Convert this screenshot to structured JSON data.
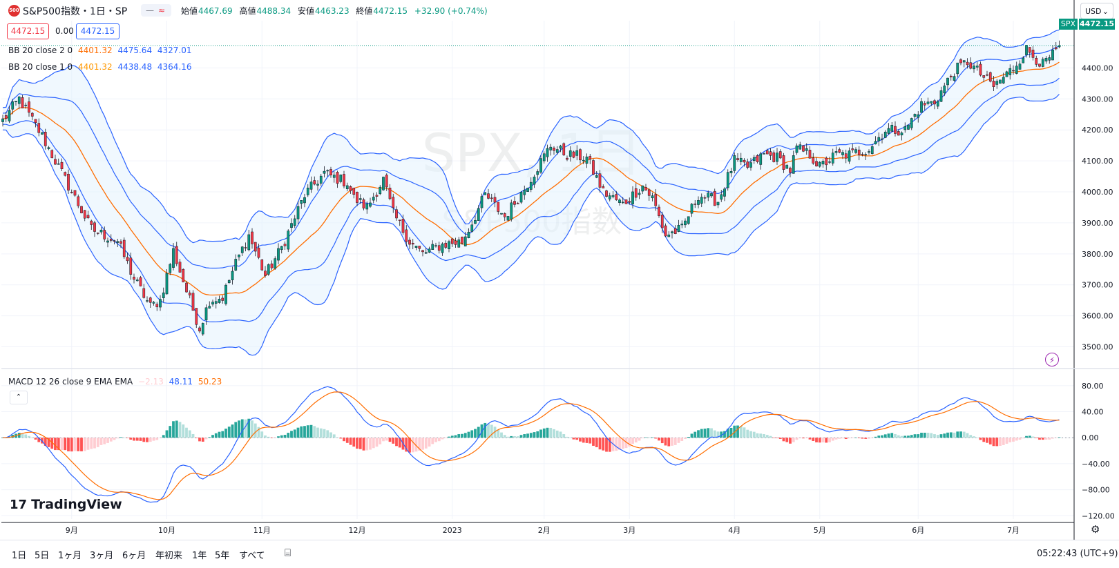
{
  "header": {
    "symbol_icon_text": "500",
    "symbol_title": "S&P500指数・1日・SP",
    "btn_icon_1": "minus-icon",
    "btn_icon_2": "wave-icon",
    "ohlc_labels": [
      "始値",
      "高値",
      "安値",
      "終値"
    ],
    "ohlc_values": [
      "4467.69",
      "4488.34",
      "4463.23",
      "4472.15"
    ],
    "change": "+32.90 (+0.74%)"
  },
  "quote": {
    "bid": "4472.15",
    "spread": "0.00",
    "ask": "4472.15"
  },
  "indicators": {
    "bb2": {
      "label": "BB 20 close 2 0",
      "basis": "4401.32",
      "upper": "4475.64",
      "lower": "4327.01"
    },
    "bb1": {
      "label": "BB 20 close 1 0",
      "basis": "4401.32",
      "upper": "4438.48",
      "lower": "4364.16"
    },
    "macd": {
      "label": "MACD 12 26 close 9 EMA EMA",
      "hist": "−2.13",
      "macd": "48.11",
      "signal": "50.23"
    }
  },
  "watermark": {
    "line1": "SPX, 1日",
    "line2": "S&P500指数"
  },
  "price_scale": {
    "currency": "USD",
    "symbol_tag": "SPX",
    "last_price": "4472.15",
    "ticks": [
      "4400.00",
      "4300.00",
      "4200.00",
      "4100.00",
      "4000.00",
      "3900.00",
      "3800.00",
      "3700.00",
      "3600.00",
      "3500.00"
    ]
  },
  "macd_scale": {
    "ticks": [
      "80.00",
      "40.00",
      "0.00",
      "−40.00",
      "−80.00",
      "−120.00"
    ]
  },
  "time_axis": {
    "labels": [
      "9月",
      "10月",
      "11月",
      "12月",
      "2023",
      "2月",
      "3月",
      "4月",
      "5月",
      "6月",
      "7月"
    ]
  },
  "branding": {
    "logo_icon": "tradingview-logo-icon",
    "logo_text": "TradingView"
  },
  "bottom_bar": {
    "ranges": [
      "1日",
      "5日",
      "1ヶ月",
      "3ヶ月",
      "6ヶ月",
      "年初来",
      "1年",
      "5年",
      "すべて"
    ],
    "calendar_icon": "calendar-range-icon",
    "clock": "05:22:43 (UTC+9)"
  },
  "colors": {
    "up": "#089981",
    "down": "#f23645",
    "bb_line": "#2962ff",
    "bb_fill": "#e3f2fd",
    "basis": "#ff6d00",
    "macd": "#2962ff",
    "signal": "#ff6d00",
    "hist_up_strong": "#26a69a",
    "hist_up_weak": "#b2dfdb",
    "hist_down_strong": "#ff5252",
    "hist_down_weak": "#ffcdd2"
  },
  "chart_data": {
    "type": "candlestick",
    "price_range": [
      3450,
      4530
    ],
    "macd_range": [
      -125,
      100
    ],
    "keypoints": [
      [
        0,
        4230
      ],
      [
        5,
        4300
      ],
      [
        12,
        4180
      ],
      [
        20,
        4020
      ],
      [
        27,
        3880
      ],
      [
        35,
        3840
      ],
      [
        40,
        3720
      ],
      [
        45,
        3630
      ],
      [
        48,
        3650
      ],
      [
        52,
        3810
      ],
      [
        56,
        3680
      ],
      [
        60,
        3560
      ],
      [
        63,
        3650
      ],
      [
        67,
        3660
      ],
      [
        71,
        3770
      ],
      [
        75,
        3860
      ],
      [
        80,
        3730
      ],
      [
        85,
        3820
      ],
      [
        92,
        3990
      ],
      [
        98,
        4060
      ],
      [
        105,
        4030
      ],
      [
        107,
        3980
      ],
      [
        111,
        3950
      ],
      [
        116,
        4040
      ],
      [
        119,
        3930
      ],
      [
        124,
        3840
      ],
      [
        128,
        3800
      ],
      [
        134,
        3830
      ],
      [
        140,
        3840
      ],
      [
        143,
        3900
      ],
      [
        147,
        3990
      ],
      [
        153,
        3920
      ],
      [
        159,
        4010
      ],
      [
        163,
        4080
      ],
      [
        167,
        4150
      ],
      [
        172,
        4120
      ],
      [
        178,
        4110
      ],
      [
        183,
        4000
      ],
      [
        189,
        3960
      ],
      [
        195,
        4020
      ],
      [
        198,
        3980
      ],
      [
        202,
        3860
      ],
      [
        207,
        3880
      ],
      [
        212,
        3990
      ],
      [
        218,
        3970
      ],
      [
        223,
        4100
      ],
      [
        227,
        4080
      ],
      [
        232,
        4120
      ],
      [
        236,
        4110
      ],
      [
        240,
        4070
      ],
      [
        242,
        4140
      ],
      [
        246,
        4120
      ],
      [
        249,
        4080
      ],
      [
        254,
        4120
      ],
      [
        258,
        4120
      ],
      [
        264,
        4140
      ],
      [
        269,
        4200
      ],
      [
        275,
        4200
      ],
      [
        280,
        4280
      ],
      [
        284,
        4290
      ],
      [
        290,
        4390
      ],
      [
        294,
        4420
      ],
      [
        298,
        4380
      ],
      [
        302,
        4340
      ],
      [
        308,
        4400
      ],
      [
        312,
        4460
      ],
      [
        317,
        4410
      ],
      [
        321,
        4450
      ],
      [
        322,
        4472.15
      ]
    ],
    "n_bars": 323,
    "last": {
      "open": 4467.69,
      "high": 4488.34,
      "low": 4463.23,
      "close": 4472.15,
      "change": 32.9,
      "change_pct": 0.74
    },
    "bb2_last": {
      "basis": 4401.32,
      "upper": 4475.64,
      "lower": 4327.01
    },
    "macd_last": {
      "hist": -2.13,
      "macd": 48.11,
      "signal": 50.23
    },
    "date_labels": [
      "9月",
      "10月",
      "11月",
      "12月",
      "2023",
      "2月",
      "3月",
      "4月",
      "5月",
      "6月",
      "7月"
    ],
    "date_label_bars": [
      21,
      50,
      79,
      108,
      137,
      165,
      191,
      223,
      249,
      279,
      308
    ]
  }
}
